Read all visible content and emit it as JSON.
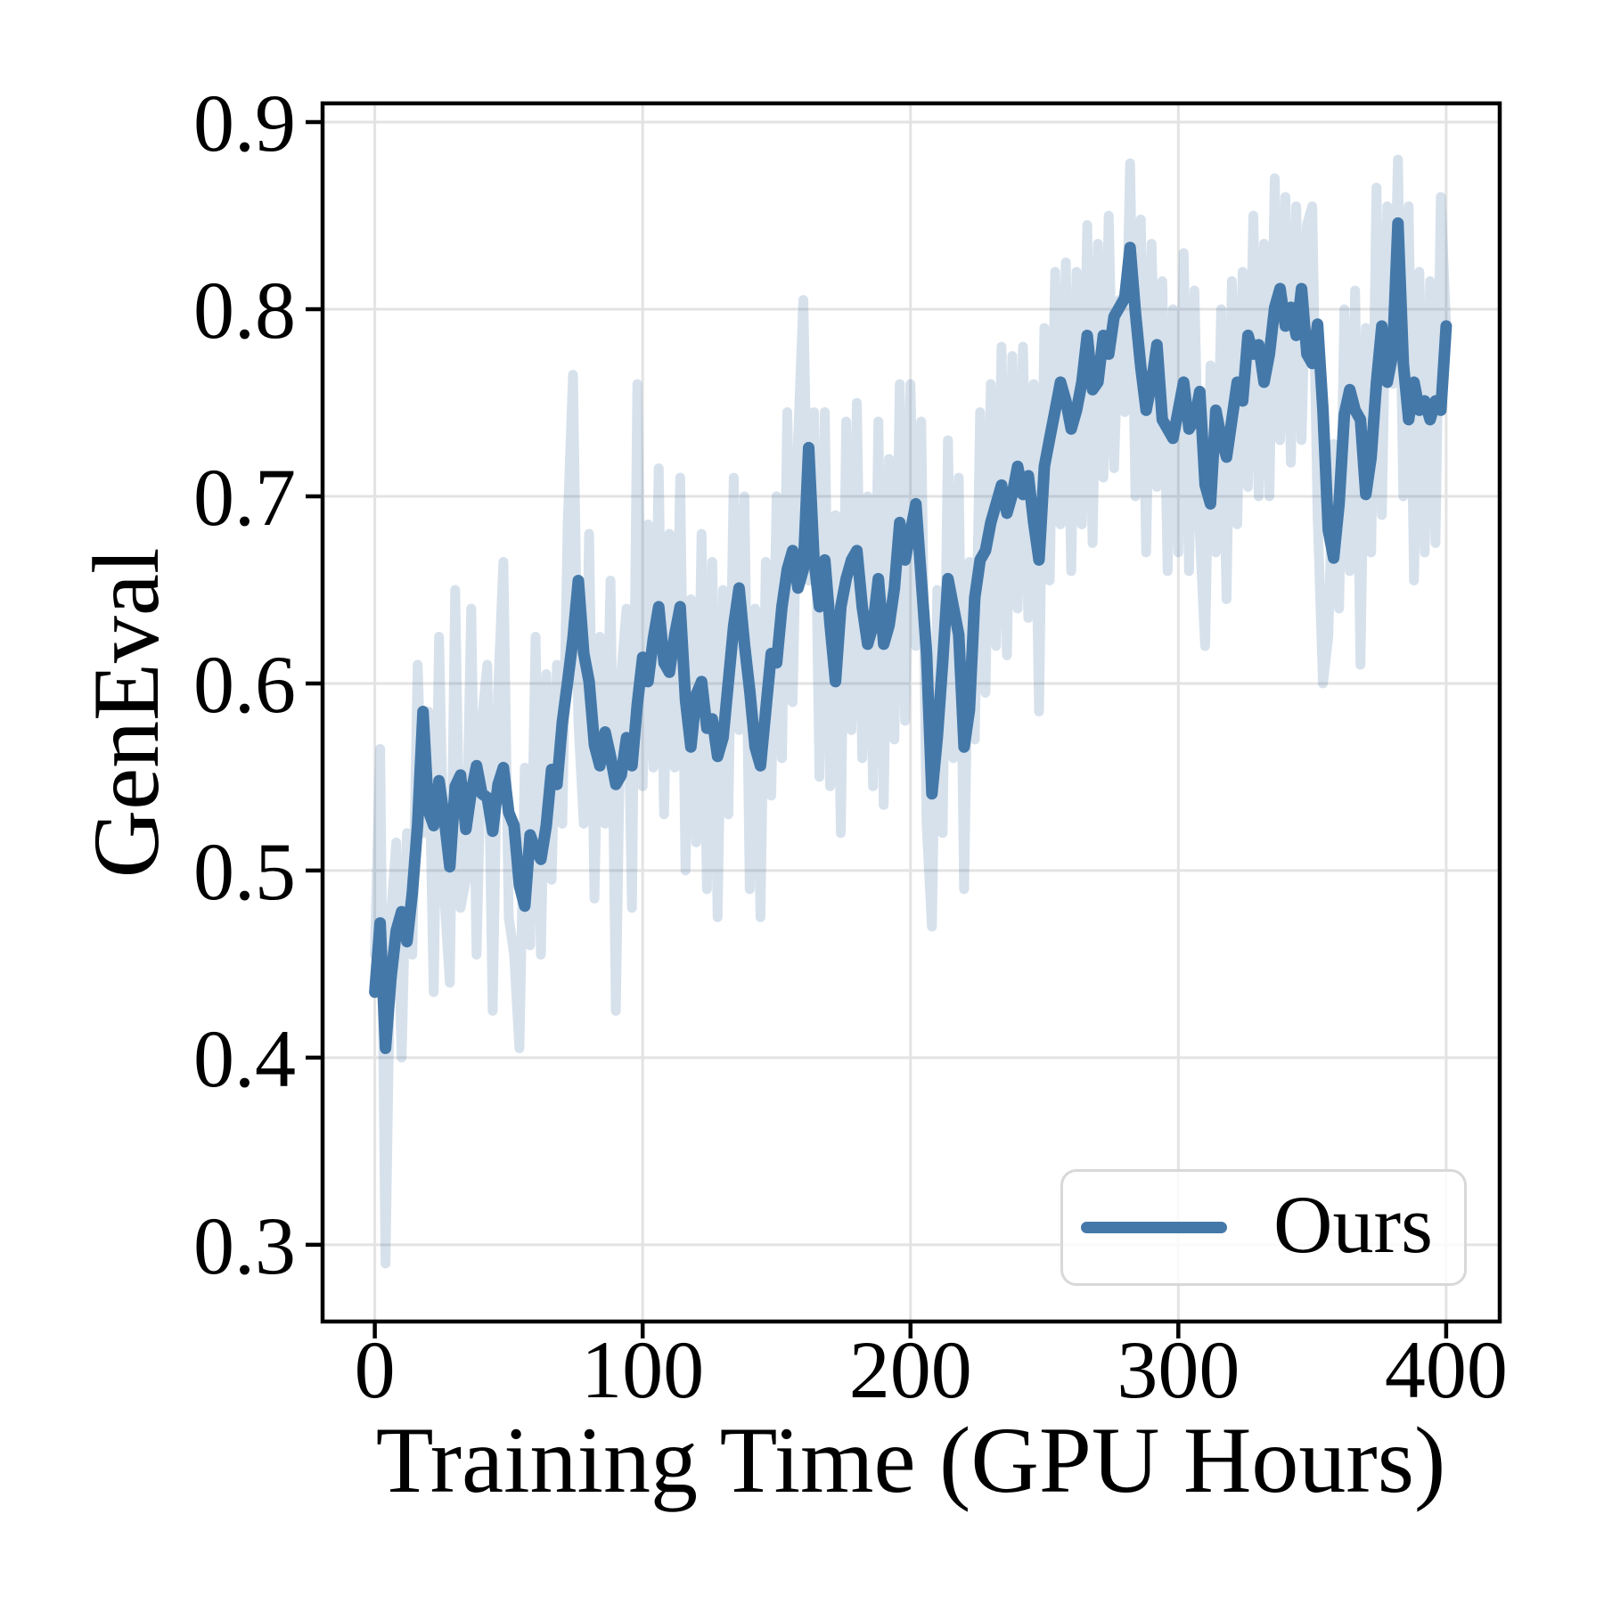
{
  "figure": {
    "background": "#ffffff"
  },
  "chart_data": {
    "type": "line",
    "title": "",
    "xlabel": "Training Time (GPU Hours)",
    "ylabel": "GenEval",
    "xlim": [
      -19.5,
      420
    ],
    "ylim": [
      0.259,
      0.91
    ],
    "xticks": [
      0,
      100,
      200,
      300,
      400
    ],
    "xtick_labels": [
      "0",
      "100",
      "200",
      "300",
      "400"
    ],
    "yticks": [
      0.3,
      0.4,
      0.5,
      0.6,
      0.7,
      0.8,
      0.9
    ],
    "ytick_labels": [
      "0.3",
      "0.4",
      "0.5",
      "0.6",
      "0.7",
      "0.8",
      "0.9"
    ],
    "grid": true,
    "grid_color": "#e3e3e3",
    "axis_color": "#000000",
    "text_color": "#000000",
    "accent_color": "#4478a9",
    "legend": {
      "position": "lower-right",
      "entries": [
        {
          "label": "Ours",
          "color": "#4478a9"
        }
      ]
    },
    "x": [
      0,
      2,
      4,
      6,
      8,
      10,
      12,
      14,
      16,
      18,
      20,
      22,
      24,
      26,
      28,
      30,
      32,
      34,
      36,
      38,
      40,
      42,
      44,
      46,
      48,
      50,
      52,
      54,
      56,
      58,
      60,
      62,
      64,
      66,
      68,
      70,
      72,
      74,
      76,
      78,
      80,
      82,
      84,
      86,
      88,
      90,
      92,
      94,
      96,
      98,
      100,
      102,
      104,
      106,
      108,
      110,
      112,
      114,
      116,
      118,
      120,
      122,
      124,
      126,
      128,
      130,
      132,
      134,
      136,
      138,
      140,
      142,
      144,
      146,
      148,
      150,
      152,
      154,
      156,
      158,
      160,
      162,
      164,
      166,
      168,
      170,
      172,
      174,
      176,
      178,
      180,
      182,
      184,
      186,
      188,
      190,
      192,
      194,
      196,
      198,
      200,
      202,
      204,
      206,
      208,
      210,
      212,
      214,
      216,
      218,
      220,
      222,
      224,
      226,
      228,
      230,
      232,
      234,
      236,
      238,
      240,
      242,
      244,
      246,
      248,
      250,
      252,
      254,
      256,
      258,
      260,
      262,
      264,
      266,
      268,
      270,
      272,
      274,
      276,
      278,
      280,
      282,
      284,
      286,
      288,
      290,
      292,
      294,
      296,
      298,
      300,
      302,
      304,
      306,
      308,
      310,
      312,
      314,
      316,
      318,
      320,
      322,
      324,
      326,
      328,
      330,
      332,
      334,
      336,
      338,
      340,
      342,
      344,
      346,
      348,
      350,
      352,
      354,
      356,
      358,
      360,
      362,
      364,
      366,
      368,
      370,
      372,
      374,
      376,
      378,
      380,
      382,
      384,
      386,
      388,
      390,
      392,
      394,
      396,
      398,
      400
    ],
    "series": [
      {
        "name": "raw",
        "color": "#4478a9",
        "opacity": 0.22,
        "line_width": 11,
        "in_legend": false,
        "values": [
          0.455,
          0.565,
          0.29,
          0.475,
          0.515,
          0.4,
          0.52,
          0.455,
          0.61,
          0.52,
          0.585,
          0.435,
          0.625,
          0.485,
          0.44,
          0.65,
          0.48,
          0.495,
          0.64,
          0.455,
          0.58,
          0.61,
          0.425,
          0.595,
          0.665,
          0.475,
          0.455,
          0.405,
          0.555,
          0.46,
          0.625,
          0.455,
          0.605,
          0.495,
          0.61,
          0.525,
          0.685,
          0.765,
          0.58,
          0.525,
          0.68,
          0.485,
          0.625,
          0.525,
          0.655,
          0.425,
          0.605,
          0.64,
          0.48,
          0.76,
          0.545,
          0.685,
          0.555,
          0.715,
          0.53,
          0.68,
          0.555,
          0.71,
          0.5,
          0.645,
          0.515,
          0.68,
          0.49,
          0.665,
          0.475,
          0.65,
          0.53,
          0.71,
          0.575,
          0.7,
          0.49,
          0.64,
          0.475,
          0.665,
          0.54,
          0.7,
          0.56,
          0.745,
          0.59,
          0.73,
          0.805,
          0.655,
          0.745,
          0.55,
          0.745,
          0.545,
          0.69,
          0.52,
          0.74,
          0.575,
          0.75,
          0.56,
          0.7,
          0.545,
          0.74,
          0.535,
          0.72,
          0.57,
          0.76,
          0.58,
          0.76,
          0.62,
          0.74,
          0.525,
          0.47,
          0.65,
          0.52,
          0.73,
          0.56,
          0.71,
          0.49,
          0.665,
          0.57,
          0.745,
          0.595,
          0.76,
          0.62,
          0.78,
          0.615,
          0.775,
          0.64,
          0.78,
          0.635,
          0.76,
          0.585,
          0.79,
          0.655,
          0.82,
          0.685,
          0.825,
          0.66,
          0.82,
          0.685,
          0.845,
          0.675,
          0.835,
          0.71,
          0.85,
          0.715,
          0.805,
          0.745,
          0.878,
          0.7,
          0.848,
          0.67,
          0.835,
          0.705,
          0.815,
          0.66,
          0.8,
          0.67,
          0.83,
          0.66,
          0.81,
          0.68,
          0.62,
          0.77,
          0.67,
          0.8,
          0.645,
          0.815,
          0.685,
          0.82,
          0.705,
          0.85,
          0.7,
          0.835,
          0.7,
          0.87,
          0.73,
          0.86,
          0.718,
          0.855,
          0.73,
          0.845,
          0.855,
          0.69,
          0.6,
          0.625,
          0.728,
          0.64,
          0.8,
          0.66,
          0.81,
          0.61,
          0.79,
          0.67,
          0.865,
          0.69,
          0.855,
          0.76,
          0.88,
          0.7,
          0.855,
          0.655,
          0.82,
          0.67,
          0.815,
          0.675,
          0.86,
          0.79
        ]
      },
      {
        "name": "Ours",
        "color": "#4478a9",
        "opacity": 1.0,
        "line_width": 13,
        "in_legend": true,
        "values": [
          0.435,
          0.472,
          0.405,
          0.442,
          0.468,
          0.478,
          0.462,
          0.488,
          0.525,
          0.585,
          0.532,
          0.524,
          0.548,
          0.527,
          0.502,
          0.545,
          0.551,
          0.522,
          0.542,
          0.556,
          0.541,
          0.539,
          0.521,
          0.546,
          0.555,
          0.531,
          0.524,
          0.492,
          0.481,
          0.519,
          0.511,
          0.506,
          0.524,
          0.554,
          0.546,
          0.579,
          0.601,
          0.624,
          0.655,
          0.616,
          0.601,
          0.567,
          0.556,
          0.574,
          0.561,
          0.546,
          0.551,
          0.571,
          0.556,
          0.589,
          0.614,
          0.601,
          0.624,
          0.641,
          0.611,
          0.606,
          0.626,
          0.641,
          0.591,
          0.566,
          0.594,
          0.601,
          0.576,
          0.581,
          0.561,
          0.571,
          0.601,
          0.631,
          0.651,
          0.621,
          0.596,
          0.566,
          0.556,
          0.586,
          0.616,
          0.611,
          0.641,
          0.661,
          0.671,
          0.651,
          0.661,
          0.726,
          0.666,
          0.641,
          0.666,
          0.631,
          0.601,
          0.641,
          0.656,
          0.666,
          0.671,
          0.641,
          0.621,
          0.631,
          0.656,
          0.621,
          0.631,
          0.651,
          0.686,
          0.666,
          0.681,
          0.696,
          0.656,
          0.616,
          0.541,
          0.571,
          0.611,
          0.656,
          0.641,
          0.626,
          0.566,
          0.586,
          0.646,
          0.666,
          0.671,
          0.686,
          0.696,
          0.706,
          0.691,
          0.701,
          0.716,
          0.701,
          0.711,
          0.686,
          0.666,
          0.716,
          0.731,
          0.746,
          0.761,
          0.751,
          0.736,
          0.746,
          0.761,
          0.786,
          0.757,
          0.761,
          0.786,
          0.776,
          0.796,
          0.801,
          0.806,
          0.833,
          0.798,
          0.769,
          0.746,
          0.761,
          0.781,
          0.741,
          0.736,
          0.731,
          0.746,
          0.761,
          0.736,
          0.741,
          0.756,
          0.706,
          0.696,
          0.746,
          0.731,
          0.721,
          0.741,
          0.761,
          0.751,
          0.786,
          0.776,
          0.781,
          0.761,
          0.776,
          0.801,
          0.811,
          0.791,
          0.801,
          0.786,
          0.811,
          0.776,
          0.771,
          0.792,
          0.746,
          0.682,
          0.667,
          0.696,
          0.744,
          0.757,
          0.746,
          0.741,
          0.701,
          0.721,
          0.761,
          0.791,
          0.761,
          0.776,
          0.846,
          0.771,
          0.741,
          0.761,
          0.746,
          0.751,
          0.741,
          0.751,
          0.746,
          0.791
        ]
      }
    ]
  }
}
